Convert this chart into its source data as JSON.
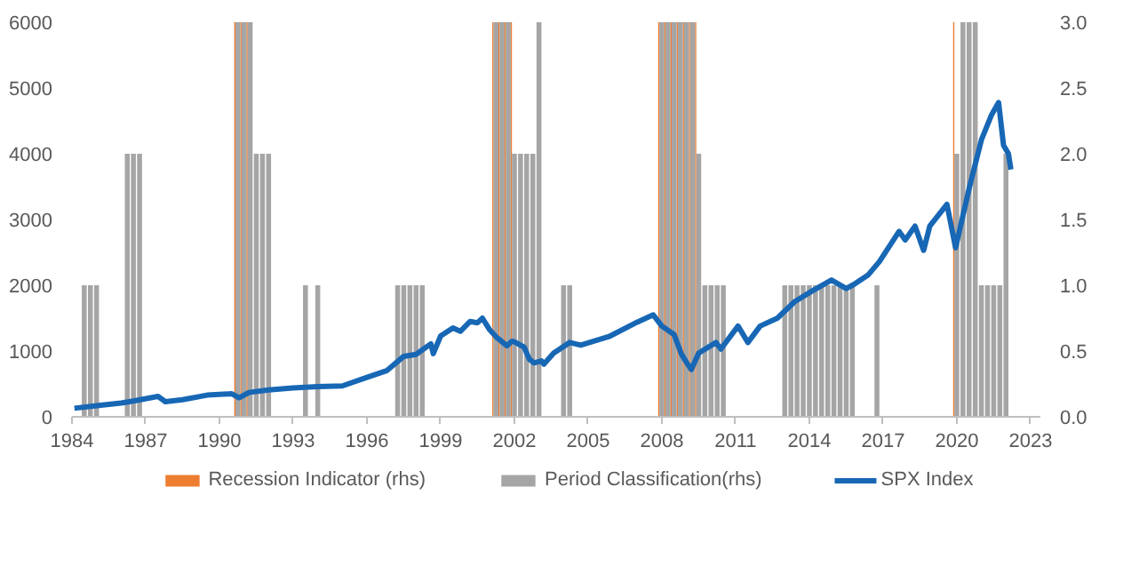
{
  "chart_data": {
    "type": "line",
    "xlim": [
      1984,
      2023.4
    ],
    "xticks": [
      1984,
      1987,
      1990,
      1993,
      1996,
      1999,
      2002,
      2005,
      2008,
      2011,
      2014,
      2017,
      2020,
      2023
    ],
    "ylim": [
      0,
      6000
    ],
    "yticks": [
      0,
      1000,
      2000,
      3000,
      4000,
      5000,
      6000
    ],
    "y2lim": [
      0,
      3.0
    ],
    "y2ticks": [
      {
        "value": 0,
        "label": "0.0"
      },
      {
        "value": 0.5,
        "label": "0.5"
      },
      {
        "value": 1.0,
        "label": "1.0"
      },
      {
        "value": 1.5,
        "label": "1.5"
      },
      {
        "value": 2.0,
        "label": "2.0"
      },
      {
        "value": 2.5,
        "label": "2.5"
      },
      {
        "value": 3.0,
        "label": "3.0"
      }
    ],
    "grid": false,
    "legend": "bottom",
    "series": [
      {
        "name": "Recession Indicator (rhs)",
        "type": "bar",
        "axis": "y2",
        "color": "#ed7d31",
        "x": [
          1990.625,
          1990.875,
          1991.125,
          2001.125,
          2001.375,
          2001.625,
          2001.875,
          2007.875,
          2008.125,
          2008.375,
          2008.625,
          2008.875,
          2009.125,
          2009.375,
          2019.875
        ],
        "values": [
          3.0,
          3.0,
          3.0,
          3.0,
          3.0,
          3.0,
          3.0,
          3.0,
          3.0,
          3.0,
          3.0,
          3.0,
          3.0,
          3.0,
          3.0
        ]
      },
      {
        "name": "Period Classification(rhs)",
        "type": "bar",
        "axis": "y2",
        "color": "#a5a5a5",
        "x": [
          1984.5,
          1984.75,
          1985.0,
          1986.25,
          1986.5,
          1986.75,
          1990.75,
          1991.0,
          1991.25,
          1991.5,
          1991.75,
          1992.0,
          1993.5,
          1994.0,
          1997.25,
          1997.5,
          1997.75,
          1998.0,
          1998.25,
          2001.25,
          2001.5,
          2001.75,
          2002.0,
          2002.25,
          2002.5,
          2002.75,
          2003.0,
          2004.0,
          2004.25,
          2008.0,
          2008.25,
          2008.5,
          2008.75,
          2009.0,
          2009.25,
          2009.5,
          2009.75,
          2010.0,
          2010.25,
          2010.5,
          2013.0,
          2013.25,
          2013.5,
          2013.75,
          2014.0,
          2014.25,
          2014.5,
          2014.75,
          2015.0,
          2015.25,
          2015.5,
          2015.75,
          2016.75,
          2020.0,
          2020.25,
          2020.5,
          2020.75,
          2021.0,
          2021.25,
          2021.5,
          2021.75,
          2022.0
        ],
        "values": [
          1.0,
          1.0,
          1.0,
          2.0,
          2.0,
          2.0,
          3.0,
          3.0,
          3.0,
          2.0,
          2.0,
          2.0,
          1.0,
          1.0,
          1.0,
          1.0,
          1.0,
          1.0,
          1.0,
          3.0,
          3.0,
          3.0,
          2.0,
          2.0,
          2.0,
          2.0,
          3.0,
          1.0,
          1.0,
          3.0,
          3.0,
          3.0,
          3.0,
          3.0,
          3.0,
          2.0,
          1.0,
          1.0,
          1.0,
          1.0,
          1.0,
          1.0,
          1.0,
          1.0,
          1.0,
          1.0,
          1.0,
          1.0,
          1.0,
          1.0,
          1.0,
          1.0,
          1.0,
          2.0,
          3.0,
          3.0,
          3.0,
          1.0,
          1.0,
          1.0,
          1.0,
          2.0
        ]
      },
      {
        "name": "SPX Index",
        "color": "#1767b5",
        "x": [
          1984.1,
          1985.0,
          1986.0,
          1986.5,
          1987.5,
          1987.8,
          1988.5,
          1989.5,
          1990.5,
          1990.8,
          1991.2,
          1992.0,
          1993.0,
          1994.0,
          1995.0,
          1996.0,
          1996.8,
          1997.5,
          1998.0,
          1998.6,
          1998.7,
          1999.0,
          1999.5,
          1999.8,
          2000.2,
          2000.5,
          2000.7,
          2001.0,
          2001.3,
          2001.7,
          2001.9,
          2002.0,
          2002.4,
          2002.6,
          2002.8,
          2003.1,
          2003.2,
          2003.6,
          2004.25,
          2004.7,
          2005.85,
          2007.0,
          2007.65,
          2008.0,
          2008.5,
          2008.8,
          2009.05,
          2009.2,
          2009.5,
          2010.2,
          2010.4,
          2011.1,
          2011.5,
          2012.0,
          2012.7,
          2013.4,
          2014.1,
          2014.9,
          2015.5,
          2015.8,
          2016.4,
          2016.85,
          2017.65,
          2017.9,
          2018.3,
          2018.65,
          2018.9,
          2019.6,
          2019.95,
          2020.5,
          2021.0,
          2021.4,
          2021.7,
          2021.9,
          2022.1,
          2022.2
        ],
        "values": [
          130,
          170,
          210,
          240,
          310,
          230,
          260,
          330,
          350,
          290,
          370,
          410,
          440,
          460,
          470,
          600,
          700,
          920,
          950,
          1110,
          960,
          1230,
          1350,
          1300,
          1450,
          1430,
          1500,
          1320,
          1200,
          1080,
          1150,
          1140,
          1060,
          880,
          820,
          850,
          800,
          970,
          1130,
          1090,
          1220,
          1440,
          1550,
          1380,
          1250,
          950,
          800,
          720,
          970,
          1130,
          1030,
          1380,
          1130,
          1380,
          1500,
          1750,
          1910,
          2080,
          1950,
          2010,
          2160,
          2360,
          2820,
          2690,
          2900,
          2530,
          2900,
          3230,
          2570,
          3470,
          4210,
          4580,
          4780,
          4130,
          4000,
          3760
        ]
      }
    ]
  }
}
